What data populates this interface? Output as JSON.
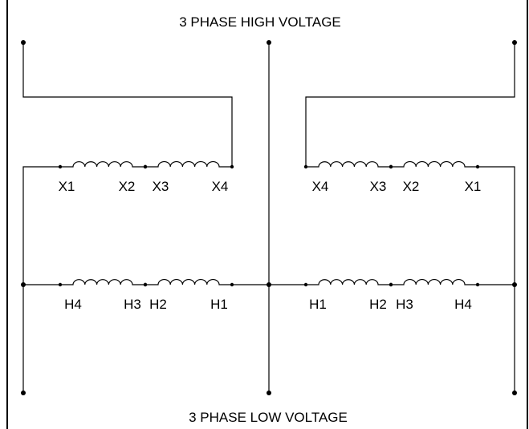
{
  "title_top": "3 PHASE HIGH VOLTAGE",
  "title_bottom": "3 PHASE LOW VOLTAGE",
  "left_transformer": {
    "secondary_labels": [
      "X1",
      "X2",
      "X3",
      "X4"
    ],
    "primary_labels": [
      "H4",
      "H3",
      "H2",
      "H1"
    ]
  },
  "right_transformer": {
    "secondary_labels": [
      "X4",
      "X3",
      "X2",
      "X1"
    ],
    "primary_labels": [
      "H1",
      "H2",
      "H3",
      "H4"
    ]
  }
}
